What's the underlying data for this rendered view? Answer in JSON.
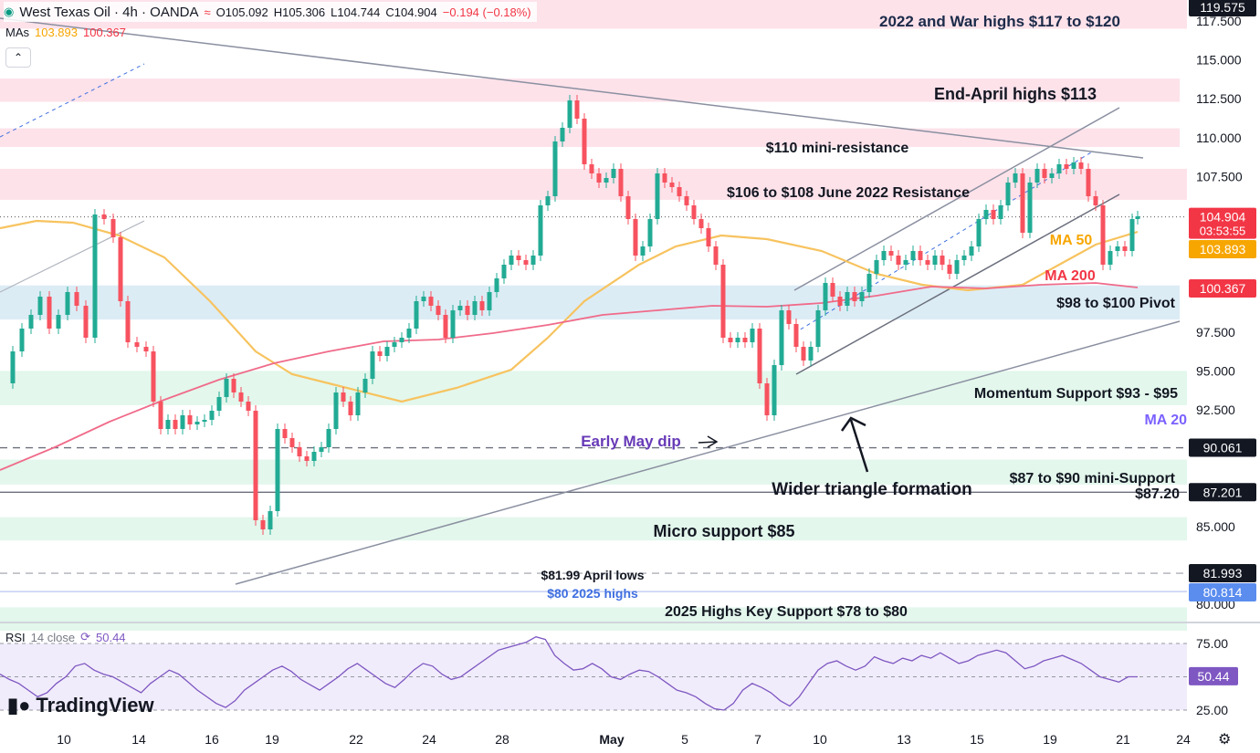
{
  "header": {
    "symbol": "West Texas Oil · 4h · OANDA",
    "open": "O105.092",
    "high": "H105.306",
    "low": "L104.744",
    "close": "C104.904",
    "change": "−0.194 (−0.18%)",
    "status_icon": "market-open-icon",
    "compare_icon": "compare-icon"
  },
  "mas": {
    "label": "MAs",
    "ma50": "103.893",
    "ma200": "100.367"
  },
  "rsi_header": {
    "label": "RSI",
    "params": "14 close",
    "value": "50.44"
  },
  "logo": {
    "text": "TradingView"
  },
  "colors": {
    "up": "#22ab94",
    "down": "#f7525f",
    "ma50": "#f7c35f",
    "ma200": "#f06b8a",
    "resistance_zone": "#fde2ea",
    "support_zone": "#e3f7ec",
    "pivot_zone": "#dcecf5",
    "rsi": "#7e57c2",
    "purple_text": "#673ab7"
  },
  "chart_data": {
    "type": "candlestick",
    "symbol": "West Texas Oil",
    "timeframe": "4h",
    "y_axis": {
      "min": 77.5,
      "max": 120,
      "ticks": [
        "117.500",
        "115.000",
        "112.500",
        "110.000",
        "107.500",
        "105.000",
        "97.500",
        "95.000",
        "92.500",
        "85.000",
        "80.000"
      ]
    },
    "x_axis": {
      "ticks": [
        "10",
        "14",
        "16",
        "19",
        "22",
        "24",
        "28",
        "May",
        "5",
        "7",
        "10",
        "13",
        "15",
        "19",
        "21",
        "24"
      ]
    },
    "price_labels": [
      {
        "value": 119.575,
        "text": "119.575",
        "color": "#131722"
      },
      {
        "value": 104.904,
        "text": "104.904",
        "sub": "03:53:55",
        "color": "#f23645"
      },
      {
        "value": 103.893,
        "text": "103.893",
        "color": "#f7a600"
      },
      {
        "value": 100.367,
        "text": "100.367",
        "color": "#f23645"
      },
      {
        "value": 90.061,
        "text": "90.061",
        "color": "#131722"
      },
      {
        "value": 87.201,
        "text": "87.201",
        "color": "#131722"
      },
      {
        "value": 81.993,
        "text": "81.993",
        "color": "#131722"
      },
      {
        "value": 80.814,
        "text": "80.814",
        "color": "#5b8def"
      }
    ],
    "zones": [
      {
        "label": "2022 and War highs $117 to $120",
        "from": 117,
        "to": 120,
        "kind": "resistance"
      },
      {
        "label": "End-April highs $113",
        "from": 112.3,
        "to": 113.8,
        "kind": "resistance"
      },
      {
        "label": "$110 mini-resistance",
        "from": 109.4,
        "to": 110.6,
        "kind": "resistance"
      },
      {
        "label": "$106 to $108 June 2022 Resistance",
        "from": 106,
        "to": 108,
        "kind": "resistance"
      },
      {
        "label": "$98 to $100 Pivot",
        "from": 98.3,
        "to": 100.5,
        "kind": "pivot"
      },
      {
        "label": "Momentum Support $93 - $95",
        "from": 92.8,
        "to": 95,
        "kind": "support"
      },
      {
        "label": "$87 to $90 mini-Support",
        "from": 87.7,
        "to": 89.3,
        "kind": "support"
      },
      {
        "label": "Micro support $85",
        "from": 84.1,
        "to": 85.6,
        "kind": "support"
      },
      {
        "label": "2025 Highs Key Support $78 to $80",
        "from": 78.3,
        "to": 79.8,
        "kind": "support"
      }
    ],
    "annotations": [
      {
        "text": "MA 50",
        "color": "#f7a600"
      },
      {
        "text": "MA 200",
        "color": "#f23645"
      },
      {
        "text": "MA 20",
        "color": "#7b61ff"
      },
      {
        "text": "Early May dip",
        "color": "#673ab7"
      },
      {
        "text": "Wider triangle formation",
        "color": "#131722"
      },
      {
        "text": "$87.20",
        "color": "#131722"
      },
      {
        "text": "$81.99 April lows",
        "color": "#131722"
      },
      {
        "text": "$80 2025 highs",
        "color": "#3f6fe0"
      }
    ],
    "rsi": {
      "levels": [
        75,
        50,
        25
      ],
      "level_labels": [
        "75.00",
        "25.00"
      ],
      "value": 50.44,
      "values": [
        52,
        48,
        45,
        40,
        35,
        38,
        45,
        50,
        58,
        60,
        55,
        52,
        50,
        46,
        42,
        38,
        45,
        50,
        55,
        52,
        46,
        40,
        35,
        30,
        27,
        32,
        40,
        45,
        50,
        55,
        58,
        54,
        48,
        44,
        40,
        45,
        50,
        56,
        60,
        55,
        50,
        45,
        42,
        48,
        55,
        60,
        58,
        52,
        48,
        50,
        55,
        60,
        65,
        70,
        72,
        74,
        76,
        80,
        78,
        66,
        60,
        55,
        56,
        60,
        56,
        50,
        48,
        52,
        55,
        54,
        50,
        45,
        40,
        38,
        35,
        30,
        26,
        25,
        30,
        40,
        45,
        42,
        38,
        32,
        28,
        35,
        45,
        55,
        60,
        62,
        58,
        55,
        58,
        65,
        62,
        60,
        64,
        62,
        66,
        64,
        68,
        64,
        60,
        62,
        66,
        68,
        70,
        68,
        62,
        56,
        58,
        62,
        64,
        66,
        63,
        60,
        55,
        50,
        48,
        46,
        50,
        50
      ]
    }
  }
}
